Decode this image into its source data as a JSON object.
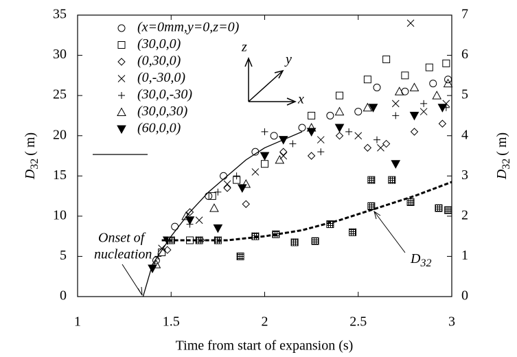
{
  "chart_data": {
    "type": "scatter",
    "color": "#000000",
    "xlabel": "Time from start of expansion (s)",
    "ylabel": {
      "main": "D",
      "sub": "32",
      "unit": "( m)"
    },
    "y2label": {
      "main": "D",
      "sub": "32",
      "unit": "( m)"
    },
    "xlim": [
      1,
      3
    ],
    "xticks": [
      1,
      1.5,
      2,
      2.5,
      3
    ],
    "ylim": [
      0,
      35
    ],
    "yticks": [
      0,
      5,
      10,
      15,
      20,
      25,
      30,
      35
    ],
    "y2lim": [
      0,
      7
    ],
    "y2ticks": [
      0,
      1,
      2,
      3,
      4,
      5,
      6,
      7
    ],
    "annotations": {
      "onset": [
        "Onset of",
        "nucleation"
      ],
      "d32": {
        "main": "D",
        "sub": "32"
      },
      "axes": [
        "z",
        "y",
        "x"
      ]
    },
    "series": [
      {
        "name": "(x=0mm,y=0,z=0)",
        "marker": "circle",
        "x": [
          1.42,
          1.52,
          1.7,
          1.78,
          1.95,
          2.05,
          2.2,
          2.35,
          2.5,
          2.6,
          2.75,
          2.9,
          2.98
        ],
        "values": [
          4.5,
          8.7,
          12.5,
          15,
          18,
          20,
          21,
          22.5,
          23,
          26,
          25.5,
          26.5,
          27
        ]
      },
      {
        "name": "(30,0,0)",
        "marker": "square",
        "x": [
          1.45,
          1.6,
          1.72,
          1.85,
          2.0,
          2.25,
          2.4,
          2.55,
          2.65,
          2.75,
          2.88,
          2.97
        ],
        "values": [
          5.5,
          7,
          12.5,
          14.5,
          16.5,
          22.5,
          25,
          27,
          29.5,
          27.5,
          28.5,
          29
        ]
      },
      {
        "name": "(0,30,0)",
        "marker": "diamond",
        "x": [
          1.48,
          1.6,
          1.66,
          1.8,
          1.9,
          2.1,
          2.25,
          2.4,
          2.55,
          2.65,
          2.8,
          2.95
        ],
        "values": [
          5.8,
          10.5,
          7,
          13.5,
          11.5,
          18,
          17.5,
          20,
          18.5,
          19,
          20.5,
          21.5
        ]
      },
      {
        "name": "(0,-30,0)",
        "marker": "cross",
        "x": [
          1.45,
          1.65,
          1.8,
          1.95,
          2.1,
          2.3,
          2.5,
          2.62,
          2.7,
          2.78,
          2.85,
          2.97
        ],
        "values": [
          6,
          9.5,
          14,
          15.5,
          17.5,
          19.5,
          20,
          18.5,
          24,
          34,
          23,
          24
        ]
      },
      {
        "name": "(30,0,-30)",
        "marker": "plus",
        "x": [
          1.43,
          1.6,
          1.75,
          1.85,
          2.0,
          2.15,
          2.3,
          2.45,
          2.6,
          2.7,
          2.85,
          2.97
        ],
        "values": [
          5,
          9,
          13,
          15,
          20.5,
          19,
          18,
          20.5,
          19.5,
          22.5,
          24,
          23.5
        ]
      },
      {
        "name": "(30,0,30)",
        "marker": "triangle",
        "x": [
          1.42,
          1.58,
          1.73,
          1.9,
          2.08,
          2.25,
          2.4,
          2.55,
          2.72,
          2.8,
          2.92,
          2.98
        ],
        "values": [
          4,
          10,
          11,
          14,
          17,
          21,
          23,
          23.5,
          25.5,
          26,
          25,
          26.5
        ]
      },
      {
        "name": "(60,0,0)",
        "marker": "triangle-down-filled",
        "x": [
          1.4,
          1.48,
          1.6,
          1.75,
          1.88,
          2.0,
          2.1,
          2.25,
          2.4,
          2.58,
          2.7,
          2.8,
          2.95
        ],
        "values": [
          3.5,
          7,
          9.5,
          8.5,
          13.5,
          17.5,
          19.5,
          20.5,
          21,
          23.5,
          16.5,
          22.5,
          23.5
        ]
      },
      {
        "marker": "hatched-square",
        "axis": "y2",
        "x": [
          1.5,
          1.65,
          1.75,
          1.87,
          1.95,
          2.06,
          2.16,
          2.27,
          2.35,
          2.47,
          2.57,
          2.57,
          2.68,
          2.78,
          2.93,
          2.98
        ],
        "values": [
          1.4,
          1.4,
          1.4,
          1.0,
          1.5,
          1.55,
          1.35,
          1.38,
          1.8,
          1.6,
          2.9,
          2.25,
          2.9,
          2.35,
          2.2,
          2.15
        ]
      },
      {
        "line": "solid",
        "x": [
          1.35,
          1.4,
          1.5,
          1.6,
          1.7,
          1.8,
          1.9,
          2.0,
          2.1,
          2.2
        ],
        "values": [
          0,
          4,
          7.5,
          10.5,
          13,
          15,
          17,
          18.5,
          19.5,
          20.5
        ]
      },
      {
        "line": "dashed",
        "axis": "y2",
        "x": [
          1.45,
          1.6,
          1.8,
          2.0,
          2.2,
          2.4,
          2.6,
          2.8,
          3.0
        ],
        "values": [
          1.4,
          1.4,
          1.4,
          1.5,
          1.65,
          1.9,
          2.2,
          2.5,
          2.85
        ]
      }
    ]
  }
}
